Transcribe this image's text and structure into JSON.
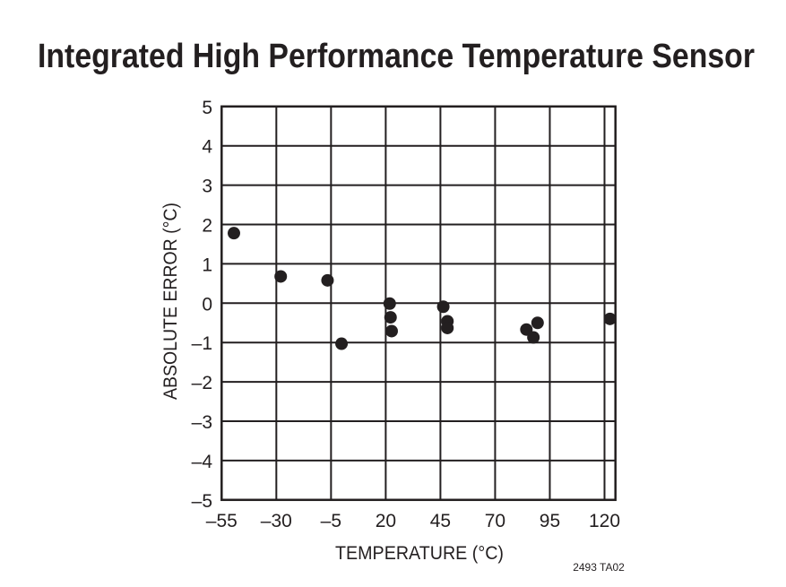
{
  "chart_data": {
    "type": "scatter",
    "title": "Integrated High Performance Temperature Sensor",
    "xlabel": "TEMPERATURE (°C)",
    "ylabel": "ABSOLUTE ERROR (°C)",
    "xlim": [
      -55,
      125
    ],
    "ylim": [
      -5,
      5
    ],
    "xticks": [
      -55,
      -30,
      -5,
      20,
      45,
      70,
      95,
      120
    ],
    "xtick_labels": [
      "–55",
      "–30",
      "–5",
      "20",
      "45",
      "70",
      "95",
      "120"
    ],
    "yticks": [
      5,
      4,
      3,
      2,
      1,
      0,
      -1,
      -2,
      -3,
      -4,
      -5
    ],
    "ytick_labels": [
      "5",
      "4",
      "3",
      "2",
      "1",
      "0",
      "–1",
      "–2",
      "–3",
      "–4",
      "–5"
    ],
    "grid": true,
    "points": [
      {
        "x": -49.4,
        "y": 1.78
      },
      {
        "x": -28.0,
        "y": 0.68
      },
      {
        "x": -6.6,
        "y": 0.58
      },
      {
        "x": -0.2,
        "y": -1.03
      },
      {
        "x": 21.8,
        "y": -0.01
      },
      {
        "x": 22.2,
        "y": -0.36
      },
      {
        "x": 22.7,
        "y": -0.71
      },
      {
        "x": 46.3,
        "y": -0.09
      },
      {
        "x": 48.2,
        "y": -0.46
      },
      {
        "x": 48.2,
        "y": -0.63
      },
      {
        "x": 84.3,
        "y": -0.67
      },
      {
        "x": 89.4,
        "y": -0.5
      },
      {
        "x": 87.5,
        "y": -0.87
      },
      {
        "x": 122.5,
        "y": -0.4
      }
    ],
    "marker_color": "#231f20",
    "annotation": "2493 TA02"
  }
}
